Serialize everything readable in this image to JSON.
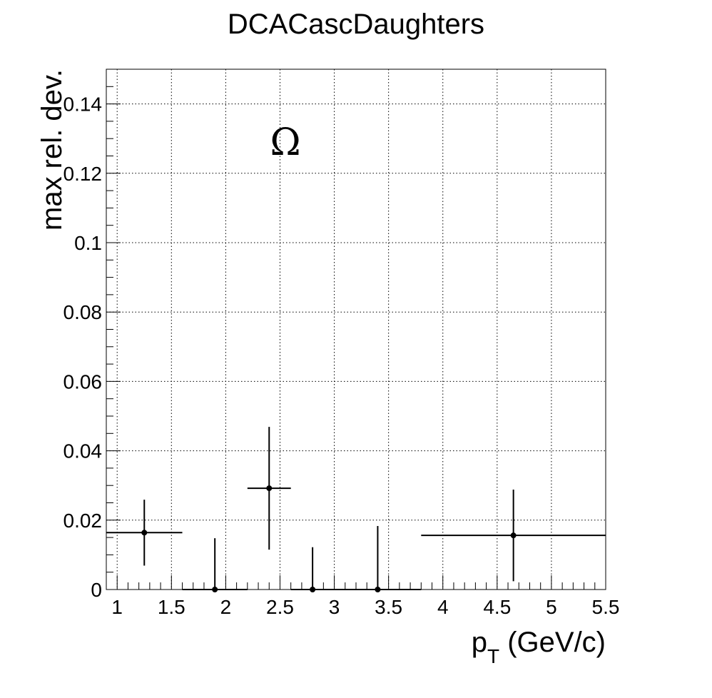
{
  "chart_data": {
    "type": "scatter",
    "title": "DCACascDaughters",
    "xlabel_main": "p",
    "xlabel_sub": "T",
    "xlabel_unit": " (GeV/c)",
    "ylabel": "max rel. dev.",
    "annotation": "Ω",
    "xlim": [
      0.9,
      5.5
    ],
    "ylim": [
      0,
      0.15
    ],
    "grid": true,
    "x_ticks": [
      {
        "value": 1,
        "label": "1"
      },
      {
        "value": 1.5,
        "label": "1.5"
      },
      {
        "value": 2,
        "label": "2"
      },
      {
        "value": 2.5,
        "label": "2.5"
      },
      {
        "value": 3,
        "label": "3"
      },
      {
        "value": 3.5,
        "label": "3.5"
      },
      {
        "value": 4,
        "label": "4"
      },
      {
        "value": 4.5,
        "label": "4.5"
      },
      {
        "value": 5,
        "label": "5"
      },
      {
        "value": 5.5,
        "label": "5.5"
      }
    ],
    "y_ticks": [
      {
        "value": 0,
        "label": "0"
      },
      {
        "value": 0.02,
        "label": "0.02"
      },
      {
        "value": 0.04,
        "label": "0.04"
      },
      {
        "value": 0.06,
        "label": "0.06"
      },
      {
        "value": 0.08,
        "label": "0.08"
      },
      {
        "value": 0.1,
        "label": "0.1"
      },
      {
        "value": 0.12,
        "label": "0.12"
      },
      {
        "value": 0.14,
        "label": "0.14"
      }
    ],
    "points": [
      {
        "x": 1.25,
        "y": 0.0164,
        "x_low": 0.9,
        "x_high": 1.6,
        "y_err": 0.0095
      },
      {
        "x": 1.9,
        "y": 0.0,
        "x_low": 1.6,
        "x_high": 2.2,
        "y_err": 0.0148
      },
      {
        "x": 2.4,
        "y": 0.0292,
        "x_low": 2.2,
        "x_high": 2.6,
        "y_err": 0.0177
      },
      {
        "x": 2.8,
        "y": 0.0,
        "x_low": 2.6,
        "x_high": 3.0,
        "y_err": 0.0122
      },
      {
        "x": 3.4,
        "y": 0.0,
        "x_low": 3.0,
        "x_high": 3.8,
        "y_err": 0.0183
      },
      {
        "x": 4.65,
        "y": 0.0156,
        "x_low": 3.8,
        "x_high": 5.5,
        "y_err": 0.0132
      }
    ],
    "colors": {
      "marker": "#000000",
      "axis": "#000000",
      "grid": "#000000",
      "background": "#ffffff"
    }
  }
}
